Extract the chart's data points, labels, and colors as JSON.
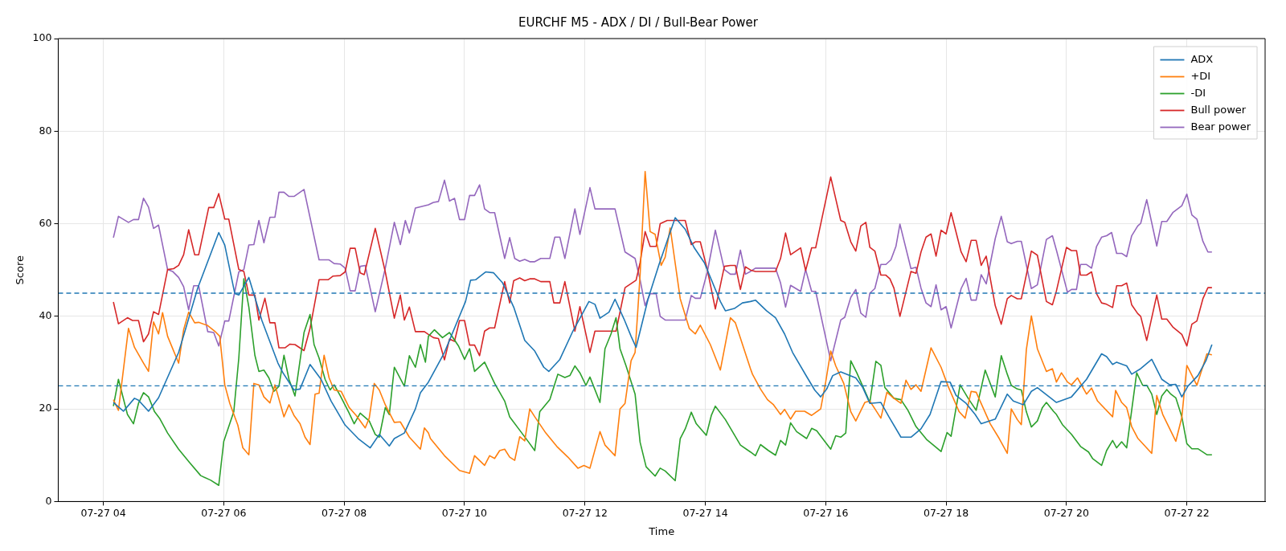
{
  "chart_data": {
    "type": "line",
    "title": "EURCHF M5 - ADX / DI / Bull-Bear Power",
    "xlabel": "Time",
    "ylabel": "Score",
    "xlim": [
      "--07-27T03:15",
      "--07-27T23:18"
    ],
    "xticks": [
      {
        "value": "--07-27T04:00",
        "label": "07-27 04"
      },
      {
        "value": "--07-27T06:00",
        "label": "07-27 06"
      },
      {
        "value": "--07-27T08:00",
        "label": "07-27 08"
      },
      {
        "value": "--07-27T10:00",
        "label": "07-27 10"
      },
      {
        "value": "--07-27T12:00",
        "label": "07-27 12"
      },
      {
        "value": "--07-27T14:00",
        "label": "07-27 14"
      },
      {
        "value": "--07-27T16:00",
        "label": "07-27 16"
      },
      {
        "value": "--07-27T18:00",
        "label": "07-27 18"
      },
      {
        "value": "--07-27T20:00",
        "label": "07-27 20"
      },
      {
        "value": "--07-27T22:00",
        "label": "07-27 22"
      }
    ],
    "ylim": [
      0,
      100
    ],
    "yticks": [
      0,
      20,
      40,
      60,
      80,
      100
    ],
    "grid": true,
    "legend": "top right",
    "ref_lines": [
      {
        "axis": "y",
        "value": 45,
        "color": "#1f77b4",
        "line_style": "dashed"
      },
      {
        "axis": "y",
        "value": 25,
        "color": "#1f77b4",
        "line_style": "dashed"
      }
    ],
    "series": [
      {
        "name": "ADX",
        "color": "#1f77b4",
        "x": [
          "--07-27T04:10",
          "--07-27T04:20",
          "--07-27T04:31",
          "--07-27T04:35",
          "--07-27T04:45",
          "--07-27T04:55",
          "--07-27T05:15",
          "--07-27T05:34",
          "--07-27T05:55",
          "--07-27T06:01",
          "--07-27T06:11",
          "--07-27T06:15",
          "--07-27T06:25",
          "--07-27T06:38",
          "--07-27T06:54",
          "--07-27T06:59",
          "--07-27T07:10",
          "--07-27T07:16",
          "--07-27T07:26",
          "--07-27T07:37",
          "--07-27T07:47",
          "--07-27T08:01",
          "--07-27T08:14",
          "--07-27T08:26",
          "--07-27T08:35",
          "--07-27T08:45",
          "--07-27T08:50",
          "--07-27T09:00",
          "--07-27T09:11",
          "--07-27T09:16",
          "--07-27T09:24",
          "--07-27T09:40",
          "--07-27T10:01",
          "--07-27T10:06",
          "--07-27T10:11",
          "--07-27T10:21",
          "--07-27T10:29",
          "--07-27T10:38",
          "--07-27T10:49",
          "--07-27T11:00",
          "--07-27T11:10",
          "--07-27T11:19",
          "--07-27T11:24",
          "--07-27T11:35",
          "--07-27T11:48",
          "--07-27T12:04",
          "--07-27T12:10",
          "--07-27T12:15",
          "--07-27T12:24",
          "--07-27T12:30",
          "--07-27T12:39",
          "--07-27T12:46",
          "--07-27T12:51",
          "--07-27T13:03",
          "--07-27T13:14",
          "--07-27T13:30",
          "--07-27T13:40",
          "--07-27T13:49",
          "--07-27T13:59",
          "--07-27T14:15",
          "--07-27T14:20",
          "--07-27T14:29",
          "--07-27T14:37",
          "--07-27T14:45",
          "--07-27T14:50",
          "--07-27T15:01",
          "--07-27T15:10",
          "--07-27T15:19",
          "--07-27T15:27",
          "--07-27T15:41",
          "--07-27T15:49",
          "--07-27T15:55",
          "--07-27T16:01",
          "--07-27T16:07",
          "--07-27T16:15",
          "--07-27T16:30",
          "--07-27T16:37",
          "--07-27T16:44",
          "--07-27T16:55",
          "--07-27T17:03",
          "--07-27T17:15",
          "--07-27T17:25",
          "--07-27T17:35",
          "--07-27T17:44",
          "--07-27T17:55",
          "--07-27T18:04",
          "--07-27T18:10",
          "--07-27T18:20",
          "--07-27T18:29",
          "--07-27T18:35",
          "--07-27T18:49",
          "--07-27T19:01",
          "--07-27T19:07",
          "--07-27T19:17",
          "--07-27T19:25",
          "--07-27T19:31",
          "--07-27T19:41",
          "--07-27T19:50",
          "--07-27T20:05",
          "--07-27T20:20",
          "--07-27T20:35",
          "--07-27T20:40",
          "--07-27T20:46",
          "--07-27T20:50",
          "--07-27T20:56",
          "--07-27T21:00",
          "--07-27T21:05",
          "--07-27T21:14",
          "--07-27T21:25",
          "--07-27T21:35",
          "--07-27T21:43",
          "--07-27T21:49",
          "--07-27T21:55",
          "--07-27T22:01",
          "--07-27T22:11",
          "--07-27T22:19",
          "--07-27T22:25"
        ],
        "values": [
          21.4,
          19.5,
          22.3,
          21.9,
          19.5,
          22.4,
          32.2,
          46.1,
          58.1,
          55.4,
          44.9,
          44.6,
          48.4,
          39.1,
          29.9,
          27.8,
          24.1,
          24.3,
          29.6,
          26.4,
          21.7,
          16.5,
          13.6,
          11.6,
          14.5,
          12,
          13.6,
          14.8,
          20,
          23.5,
          25.8,
          32.2,
          43.2,
          47.8,
          47.9,
          49.6,
          49.4,
          47.2,
          42,
          34.8,
          32.5,
          29,
          28.1,
          30.7,
          36.8,
          43.2,
          42.6,
          39.6,
          40.9,
          43.7,
          39.4,
          35.7,
          33.3,
          43.8,
          51.3,
          61.3,
          58.8,
          54.8,
          51.6,
          43.2,
          41.2,
          41.7,
          42.9,
          43.2,
          43.5,
          41.2,
          39.7,
          36.2,
          32.2,
          27,
          24.1,
          22.6,
          24.3,
          27.2,
          28,
          26.7,
          24.6,
          21.2,
          21.4,
          18.3,
          13.9,
          13.9,
          15.7,
          18.8,
          25.9,
          25.8,
          22.9,
          21.2,
          18.8,
          16.8,
          17.8,
          23.2,
          21.7,
          20.9,
          23.8,
          24.6,
          22.9,
          21.4,
          22.6,
          26.4,
          31.9,
          31.3,
          29.6,
          30.1,
          29.6,
          29.3,
          27.5,
          28.7,
          30.7,
          26.4,
          25.2,
          25.3,
          22.6,
          24.9,
          27.2,
          30.4,
          33.9
        ]
      },
      {
        "name": "+DI",
        "color": "#ff7f0e",
        "x": [
          "--07-27T04:10",
          "--07-27T04:15",
          "--07-27T04:25",
          "--07-27T04:31",
          "--07-27T04:40",
          "--07-27T04:45",
          "--07-27T04:50",
          "--07-27T04:55",
          "--07-27T04:59",
          "--07-27T05:04",
          "--07-27T05:15",
          "--07-27T05:20",
          "--07-27T05:25",
          "--07-27T05:31",
          "--07-27T05:35",
          "--07-27T05:44",
          "--07-27T05:51",
          "--07-27T05:56",
          "--07-27T06:01",
          "--07-27T06:06",
          "--07-27T06:14",
          "--07-27T06:19",
          "--07-27T06:25",
          "--07-27T06:30",
          "--07-27T06:35",
          "--07-27T06:40",
          "--07-27T06:46",
          "--07-27T06:51",
          "--07-27T07:00",
          "--07-27T07:05",
          "--07-27T07:10",
          "--07-27T07:16",
          "--07-27T07:21",
          "--07-27T07:26",
          "--07-27T07:31",
          "--07-27T07:35",
          "--07-27T07:40",
          "--07-27T07:45",
          "--07-27T07:50",
          "--07-27T07:57",
          "--07-27T08:05",
          "--07-27T08:12",
          "--07-27T08:21",
          "--07-27T08:25",
          "--07-27T08:30",
          "--07-27T08:35",
          "--07-27T08:41",
          "--07-27T08:50",
          "--07-27T08:56",
          "--07-27T09:05",
          "--07-27T09:16",
          "--07-27T09:20",
          "--07-27T09:24",
          "--07-27T09:26",
          "--07-27T09:40",
          "--07-27T09:55",
          "--07-27T10:05",
          "--07-27T10:10",
          "--07-27T10:20",
          "--07-27T10:25",
          "--07-27T10:30",
          "--07-27T10:35",
          "--07-27T10:40",
          "--07-27T10:45",
          "--07-27T10:50",
          "--07-27T10:55",
          "--07-27T11:00",
          "--07-27T11:05",
          "--07-27T11:10",
          "--07-27T11:21",
          "--07-27T11:32",
          "--07-27T11:43",
          "--07-27T11:53",
          "--07-27T11:59",
          "--07-27T12:05",
          "--07-27T12:15",
          "--07-27T12:20",
          "--07-27T12:30",
          "--07-27T12:35",
          "--07-27T12:40",
          "--07-27T12:46",
          "--07-27T12:50",
          "--07-27T12:55",
          "--07-27T13:00",
          "--07-27T13:05",
          "--07-27T13:10",
          "--07-27T13:16",
          "--07-27T13:20",
          "--07-27T13:25",
          "--07-27T13:35",
          "--07-27T13:44",
          "--07-27T13:50",
          "--07-27T13:55",
          "--07-27T14:05",
          "--07-27T14:15",
          "--07-27T14:25",
          "--07-27T14:30",
          "--07-27T14:45",
          "--07-27T14:47",
          "--07-27T14:55",
          "--07-27T15:02",
          "--07-27T15:08",
          "--07-27T15:15",
          "--07-27T15:19",
          "--07-27T15:25",
          "--07-27T15:30",
          "--07-27T15:39",
          "--07-27T15:46",
          "--07-27T15:55",
          "--07-27T16:00",
          "--07-27T16:05",
          "--07-27T16:10",
          "--07-27T16:18",
          "--07-27T16:25",
          "--07-27T16:30",
          "--07-27T16:39",
          "--07-27T16:44",
          "--07-27T16:50",
          "--07-27T16:55",
          "--07-27T17:01",
          "--07-27T17:08",
          "--07-27T17:15",
          "--07-27T17:20",
          "--07-27T17:25",
          "--07-27T17:30",
          "--07-27T17:35",
          "--07-27T17:45",
          "--07-27T17:55",
          "--07-27T18:02",
          "--07-27T18:13",
          "--07-27T18:19",
          "--07-27T18:25",
          "--07-27T18:30",
          "--07-27T18:44",
          "--07-27T18:53",
          "--07-27T19:01",
          "--07-27T19:05",
          "--07-27T19:11",
          "--07-27T19:15",
          "--07-27T19:20",
          "--07-27T19:25",
          "--07-27T19:31",
          "--07-27T19:40",
          "--07-27T19:46",
          "--07-27T19:50",
          "--07-27T19:55",
          "--07-27T20:01",
          "--07-27T20:05",
          "--07-27T20:11",
          "--07-27T20:20",
          "--07-27T20:25",
          "--07-27T20:31",
          "--07-27T20:46",
          "--07-27T20:49",
          "--07-27T20:55",
          "--07-27T21:00",
          "--07-27T21:05",
          "--07-27T21:11",
          "--07-27T21:25",
          "--07-27T21:30",
          "--07-27T21:36",
          "--07-27T21:49",
          "--07-27T21:55",
          "--07-27T22:00",
          "--07-27T22:10",
          "--07-27T22:20",
          "--07-27T22:25"
        ],
        "values": [
          22,
          19.7,
          37.4,
          33.3,
          29.9,
          28.1,
          38.8,
          36.2,
          40.8,
          35.7,
          29.9,
          37.1,
          40.9,
          38.6,
          38.7,
          38,
          36.8,
          35.7,
          25.2,
          21.2,
          16.5,
          11.6,
          10.1,
          25.5,
          25.2,
          22.6,
          21.3,
          25.2,
          18.3,
          20.9,
          18.6,
          16.8,
          13.9,
          12.3,
          23.2,
          23.4,
          31.6,
          26.7,
          24.1,
          23.8,
          20.3,
          18.6,
          15.9,
          18,
          25.5,
          24.1,
          20.9,
          17.1,
          17.2,
          13.9,
          11.3,
          15.9,
          14.8,
          13.6,
          9.9,
          6.7,
          6.1,
          9.9,
          7.8,
          9.9,
          9.3,
          11,
          11.3,
          9.6,
          8.9,
          14,
          13.1,
          20,
          18.3,
          14.8,
          11.9,
          9.6,
          7.2,
          7.8,
          7.2,
          15.1,
          12.2,
          9.9,
          20,
          21.2,
          30.4,
          32.2,
          49,
          71.3,
          58.3,
          57.7,
          51,
          52.8,
          59.1,
          43.8,
          37.4,
          36.2,
          38.1,
          33.9,
          28.4,
          39.7,
          38.6,
          28.7,
          27.5,
          24.3,
          22,
          20.9,
          18.8,
          19.9,
          17.8,
          19.5,
          19.5,
          18.6,
          20,
          25.8,
          32.5,
          29.3,
          25.5,
          19.4,
          17.4,
          21.4,
          21.7,
          19.7,
          18,
          23.6,
          22.3,
          21.2,
          26.2,
          24.2,
          25.2,
          23.8,
          33.2,
          29,
          24.9,
          19.4,
          18,
          23.8,
          23.6,
          16.8,
          13.6,
          10.4,
          20,
          17.7,
          16.6,
          32.8,
          40.1,
          33,
          28.1,
          28.7,
          25.8,
          27.8,
          25.8,
          25.2,
          26.7,
          23.2,
          24.5,
          21.7,
          18.3,
          24,
          21.4,
          20.3,
          16.2,
          13.7,
          10.4,
          22.9,
          18.8,
          13,
          18.2,
          29.4,
          25.1,
          31.9,
          31.7
        ]
      },
      {
        "name": "-DI",
        "color": "#2ca02c",
        "x": [
          "--07-27T04:10",
          "--07-27T04:15",
          "--07-27T04:24",
          "--07-27T04:30",
          "--07-27T04:35",
          "--07-27T04:40",
          "--07-27T04:45",
          "--07-27T04:51",
          "--07-27T04:56",
          "--07-27T05:04",
          "--07-27T05:15",
          "--07-27T05:26",
          "--07-27T05:37",
          "--07-27T05:47",
          "--07-27T05:55",
          "--07-27T06:00",
          "--07-27T06:10",
          "--07-27T06:15",
          "--07-27T06:20",
          "--07-27T06:25",
          "--07-27T06:31",
          "--07-27T06:35",
          "--07-27T06:40",
          "--07-27T06:45",
          "--07-27T06:50",
          "--07-27T06:55",
          "--07-27T07:00",
          "--07-27T07:05",
          "--07-27T07:11",
          "--07-27T07:20",
          "--07-27T07:26",
          "--07-27T07:30",
          "--07-27T07:35",
          "--07-27T07:41",
          "--07-27T07:46",
          "--07-27T07:50",
          "--07-27T07:56",
          "--07-27T08:05",
          "--07-27T08:10",
          "--07-27T08:16",
          "--07-27T08:25",
          "--07-27T08:31",
          "--07-27T08:35",
          "--07-27T08:41",
          "--07-27T08:45",
          "--07-27T08:50",
          "--07-27T09:00",
          "--07-27T09:05",
          "--07-27T09:11",
          "--07-27T09:16",
          "--07-27T09:21",
          "--07-27T09:24",
          "--07-27T09:30",
          "--07-27T09:38",
          "--07-27T09:45",
          "--07-27T09:54",
          "--07-27T10:00",
          "--07-27T10:05",
          "--07-27T10:10",
          "--07-27T10:20",
          "--07-27T10:30",
          "--07-27T10:40",
          "--07-27T10:45",
          "--07-27T10:55",
          "--07-27T11:04",
          "--07-27T11:10",
          "--07-27T11:15",
          "--07-27T11:25",
          "--07-27T11:33",
          "--07-27T11:40",
          "--07-27T11:45",
          "--07-27T11:50",
          "--07-27T11:55",
          "--07-27T12:01",
          "--07-27T12:05",
          "--07-27T12:15",
          "--07-27T12:20",
          "--07-27T12:26",
          "--07-27T12:31",
          "--07-27T12:35",
          "--07-27T12:41",
          "--07-27T12:50",
          "--07-27T12:55",
          "--07-27T13:01",
          "--07-27T13:10",
          "--07-27T13:15",
          "--07-27T13:20",
          "--07-27T13:30",
          "--07-27T13:35",
          "--07-27T13:40",
          "--07-27T13:46",
          "--07-27T13:51",
          "--07-27T14:01",
          "--07-27T14:06",
          "--07-27T14:10",
          "--07-27T14:20",
          "--07-27T14:35",
          "--07-27T14:45",
          "--07-27T14:50",
          "--07-27T14:55",
          "--07-27T15:03",
          "--07-27T15:10",
          "--07-27T15:15",
          "--07-27T15:20",
          "--07-27T15:25",
          "--07-27T15:31",
          "--07-27T15:41",
          "--07-27T15:46",
          "--07-27T15:51",
          "--07-27T16:05",
          "--07-27T16:10",
          "--07-27T16:15",
          "--07-27T16:20",
          "--07-27T16:25",
          "--07-27T16:31",
          "--07-27T16:41",
          "--07-27T16:44",
          "--07-27T16:50",
          "--07-27T16:55",
          "--07-27T16:59",
          "--07-27T17:08",
          "--07-27T17:15",
          "--07-27T17:22",
          "--07-27T17:30",
          "--07-27T17:41",
          "--07-27T17:49",
          "--07-27T17:55",
          "--07-27T18:01",
          "--07-27T18:05",
          "--07-27T18:14",
          "--07-27T18:22",
          "--07-27T18:30",
          "--07-27T18:39",
          "--07-27T18:49",
          "--07-27T18:55",
          "--07-27T19:01",
          "--07-27T19:05",
          "--07-27T19:11",
          "--07-27T19:15",
          "--07-27T19:20",
          "--07-27T19:25",
          "--07-27T19:31",
          "--07-27T19:36",
          "--07-27T19:40",
          "--07-27T19:47",
          "--07-27T19:50",
          "--07-27T19:56",
          "--07-27T20:05",
          "--07-27T20:14",
          "--07-27T20:22",
          "--07-27T20:26",
          "--07-27T20:35",
          "--07-27T20:40",
          "--07-27T20:46",
          "--07-27T20:50",
          "--07-27T20:55",
          "--07-27T21:00",
          "--07-27T21:10",
          "--07-27T21:16",
          "--07-27T21:20",
          "--07-27T21:25",
          "--07-27T21:30",
          "--07-27T21:35",
          "--07-27T21:40",
          "--07-27T21:44",
          "--07-27T21:49",
          "--07-27T21:55",
          "--07-27T22:00",
          "--07-27T22:05",
          "--07-27T22:11",
          "--07-27T22:20",
          "--07-27T22:25"
        ],
        "values": [
          20.6,
          26.4,
          18.8,
          16.8,
          21.2,
          23.5,
          22.6,
          19.4,
          18,
          14.8,
          11.3,
          8.4,
          5.6,
          4.6,
          3.5,
          13,
          19.4,
          31,
          48.1,
          42,
          31.6,
          28.1,
          28.4,
          26.7,
          23.8,
          24.9,
          31.6,
          26.4,
          22.8,
          36.5,
          40.4,
          33.9,
          31,
          26.4,
          24.1,
          25.2,
          22.9,
          19.1,
          16.8,
          19.1,
          17.4,
          14.5,
          13.9,
          20.3,
          18.8,
          29,
          24.9,
          31.5,
          29,
          33.9,
          30.1,
          35.7,
          37.1,
          35.4,
          36.5,
          33.6,
          30.7,
          33,
          28.1,
          30.1,
          25.5,
          21.7,
          18.3,
          15.4,
          12.8,
          11,
          19.4,
          22,
          27.5,
          26.8,
          27.2,
          29.3,
          27.8,
          25.1,
          26.9,
          21.4,
          33,
          36.2,
          39.7,
          33,
          29.3,
          23.2,
          12.8,
          7.5,
          5.5,
          7.2,
          6.6,
          4.5,
          13.6,
          15.7,
          19.3,
          16.8,
          14.3,
          18.6,
          20.6,
          17.7,
          12.2,
          10.7,
          9.9,
          12.3,
          11,
          10,
          13.2,
          12.2,
          17,
          15.1,
          13.6,
          15.8,
          15.3,
          11.3,
          14.2,
          13.9,
          14.8,
          30.4,
          27.8,
          22.9,
          21.4,
          30.3,
          29.4,
          24.6,
          22.3,
          22,
          19.7,
          16.2,
          13.3,
          11.9,
          10.8,
          14.9,
          14.1,
          25.2,
          22.3,
          19.7,
          28.4,
          22.6,
          31.5,
          27.5,
          25.1,
          24.3,
          24.1,
          19.4,
          16.1,
          17.4,
          20.3,
          21.4,
          19.5,
          18.8,
          16.6,
          14.5,
          11.9,
          10.7,
          9.3,
          7.8,
          11,
          13.2,
          11.6,
          12.9,
          11.6,
          27.8,
          25.1,
          25.1,
          23.2,
          18.8,
          22.8,
          24.2,
          23.2,
          22.4,
          18.3,
          12.5,
          11.4,
          11.4,
          10.1,
          10.1
        ]
      },
      {
        "name": "Bull power",
        "color": "#d62728",
        "x": [
          "--07-27T04:10",
          "--07-27T04:15",
          "--07-27T04:24",
          "--07-27T04:29",
          "--07-27T04:35",
          "--07-27T04:40",
          "--07-27T04:45",
          "--07-27T04:50",
          "--07-27T04:55",
          "--07-27T05:04",
          "--07-27T05:10",
          "--07-27T05:15",
          "--07-27T05:20",
          "--07-27T05:25",
          "--07-27T05:31",
          "--07-27T05:35",
          "--07-27T05:45",
          "--07-27T05:50",
          "--07-27T05:55",
          "--07-27T06:01",
          "--07-27T06:05",
          "--07-27T06:15",
          "--07-27T06:20",
          "--07-27T06:25",
          "--07-27T06:31",
          "--07-27T06:35",
          "--07-27T06:41",
          "--07-27T06:46",
          "--07-27T06:51",
          "--07-27T06:55",
          "--07-27T07:01",
          "--07-27T07:06",
          "--07-27T07:11",
          "--07-27T07:20",
          "--07-27T07:26",
          "--07-27T07:35",
          "--07-27T07:44",
          "--07-27T07:49",
          "--07-27T07:56",
          "--07-27T08:01",
          "--07-27T08:06",
          "--07-27T08:11",
          "--07-27T08:16",
          "--07-27T08:20",
          "--07-27T08:31",
          "--07-27T08:41",
          "--07-27T08:50",
          "--07-27T08:56",
          "--07-27T09:00",
          "--07-27T09:05",
          "--07-27T09:11",
          "--07-27T09:20",
          "--07-27T09:24",
          "--07-27T09:29",
          "--07-27T09:34",
          "--07-27T09:40",
          "--07-27T09:45",
          "--07-27T09:50",
          "--07-27T09:55",
          "--07-27T10:00",
          "--07-27T10:05",
          "--07-27T10:10",
          "--07-27T10:15",
          "--07-27T10:20",
          "--07-27T10:25",
          "--07-27T10:30",
          "--07-27T10:40",
          "--07-27T10:45",
          "--07-27T10:49",
          "--07-27T10:55",
          "--07-27T11:00",
          "--07-27T11:05",
          "--07-27T11:10",
          "--07-27T11:16",
          "--07-27T11:25",
          "--07-27T11:29",
          "--07-27T11:35",
          "--07-27T11:40",
          "--07-27T11:50",
          "--07-27T11:55",
          "--07-27T12:05",
          "--07-27T12:10",
          "--07-27T12:31",
          "--07-27T12:40",
          "--07-27T12:51",
          "--07-27T12:55",
          "--07-27T13:00",
          "--07-27T13:05",
          "--07-27T13:11",
          "--07-27T13:15",
          "--07-27T13:22",
          "--07-27T13:40",
          "--07-27T13:46",
          "--07-27T13:50",
          "--07-27T13:55",
          "--07-27T14:02",
          "--07-27T14:10",
          "--07-27T14:19",
          "--07-27T14:25",
          "--07-27T14:30",
          "--07-27T14:35",
          "--07-27T14:40",
          "--07-27T14:45",
          "--07-27T14:50",
          "--07-27T15:10",
          "--07-27T15:15",
          "--07-27T15:20",
          "--07-27T15:25",
          "--07-27T15:35",
          "--07-27T15:40",
          "--07-27T15:46",
          "--07-27T15:50",
          "--07-27T16:05",
          "--07-27T16:15",
          "--07-27T16:19",
          "--07-27T16:25",
          "--07-27T16:30",
          "--07-27T16:35",
          "--07-27T16:40",
          "--07-27T16:44",
          "--07-27T16:49",
          "--07-27T16:55",
          "--07-27T17:00",
          "--07-27T17:04",
          "--07-27T17:08",
          "--07-27T17:14",
          "--07-27T17:25",
          "--07-27T17:30",
          "--07-27T17:35",
          "--07-27T17:40",
          "--07-27T17:45",
          "--07-27T17:50",
          "--07-27T17:55",
          "--07-27T18:00",
          "--07-27T18:05",
          "--07-27T18:15",
          "--07-27T18:20",
          "--07-27T18:25",
          "--07-27T18:30",
          "--07-27T18:35",
          "--07-27T18:40",
          "--07-27T18:49",
          "--07-27T18:55",
          "--07-27T19:01",
          "--07-27T19:05",
          "--07-27T19:11",
          "--07-27T19:15",
          "--07-27T19:25",
          "--07-27T19:31",
          "--07-27T19:40",
          "--07-27T19:46",
          "--07-27T19:50",
          "--07-27T20:00",
          "--07-27T20:05",
          "--07-27T20:10",
          "--07-27T20:14",
          "--07-27T20:20",
          "--07-27T20:25",
          "--07-27T20:30",
          "--07-27T20:35",
          "--07-27T20:40",
          "--07-27T20:46",
          "--07-27T20:50",
          "--07-27T20:55",
          "--07-27T21:00",
          "--07-27T21:05",
          "--07-27T21:11",
          "--07-27T21:14",
          "--07-27T21:20",
          "--07-27T21:30",
          "--07-27T21:35",
          "--07-27T21:40",
          "--07-27T21:46",
          "--07-27T21:55",
          "--07-27T22:00",
          "--07-27T22:05",
          "--07-27T22:10",
          "--07-27T22:16",
          "--07-27T22:21",
          "--07-27T22:25"
        ],
        "values": [
          43.1,
          38.4,
          39.7,
          39.1,
          39.1,
          34.5,
          36.2,
          41,
          40.4,
          50.1,
          50.3,
          51,
          53.3,
          58.7,
          53.3,
          53.3,
          63.5,
          63.5,
          66.5,
          61,
          61,
          50.1,
          49.7,
          44.6,
          44.6,
          39.2,
          43.9,
          38.6,
          38.6,
          33.2,
          33.2,
          34,
          33.9,
          32.6,
          37.4,
          47.9,
          47.9,
          48.7,
          48.8,
          49.6,
          54.7,
          54.7,
          49.4,
          49,
          59,
          49.6,
          39.6,
          44.6,
          39.2,
          42,
          36.7,
          36.7,
          36.1,
          35.4,
          35.2,
          30.6,
          35.1,
          34.6,
          39.1,
          39.1,
          33.8,
          33.8,
          31.5,
          36.8,
          37.5,
          37.5,
          47.5,
          42.9,
          47.7,
          48.3,
          47.7,
          48.1,
          48.1,
          47.5,
          47.5,
          42.9,
          42.9,
          47.5,
          36.8,
          42.1,
          32.2,
          36.8,
          36.8,
          46.2,
          47.8,
          51.6,
          58.3,
          55.1,
          55.1,
          60,
          60.7,
          60.7,
          55.5,
          56.1,
          56.1,
          50.1,
          41.6,
          50.8,
          51,
          51,
          45.8,
          50.7,
          50,
          49.7,
          49.7,
          52.5,
          58,
          53.3,
          54.8,
          49.9,
          54.8,
          54.8,
          70.1,
          60.7,
          60.3,
          56.1,
          54.1,
          59.5,
          60.3,
          54.9,
          54.1,
          48.9,
          48.9,
          48.1,
          46.1,
          40,
          49.7,
          49.3,
          53.9,
          57.1,
          57.8,
          53,
          58.6,
          57.8,
          62.4,
          53.9,
          51.8,
          56.4,
          56.4,
          51,
          53,
          42.3,
          38.3,
          43.8,
          44.5,
          43.8,
          43.8,
          54.1,
          53.2,
          43.2,
          42.5,
          45.5,
          54.9,
          54.2,
          54.2,
          48.9,
          48.9,
          49.6,
          44.9,
          42.9,
          42.6,
          41.9,
          46.6,
          46.6,
          47.2,
          42.5,
          40.6,
          40,
          34.8,
          44.6,
          39.4,
          39.4,
          37.7,
          36.1,
          33.6,
          38.3,
          39,
          43.8,
          46.2,
          46.2
        ]
      },
      {
        "name": "Bear power",
        "color": "#9467bd",
        "x": [
          "--07-27T04:10",
          "--07-27T04:15",
          "--07-27T04:25",
          "--07-27T04:30",
          "--07-27T04:35",
          "--07-27T04:40",
          "--07-27T04:45",
          "--07-27T04:50",
          "--07-27T04:55",
          "--07-27T05:04",
          "--07-27T05:09",
          "--07-27T05:15",
          "--07-27T05:20",
          "--07-27T05:25",
          "--07-27T05:30",
          "--07-27T05:35",
          "--07-27T05:44",
          "--07-27T05:50",
          "--07-27T05:55",
          "--07-27T06:01",
          "--07-27T06:05",
          "--07-27T06:15",
          "--07-27T06:20",
          "--07-27T06:25",
          "--07-27T06:30",
          "--07-27T06:35",
          "--07-27T06:40",
          "--07-27T06:46",
          "--07-27T06:51",
          "--07-27T06:55",
          "--07-27T07:00",
          "--07-27T07:05",
          "--07-27T07:10",
          "--07-27T07:20",
          "--07-27T07:35",
          "--07-27T07:45",
          "--07-27T07:50",
          "--07-27T07:56",
          "--07-27T08:01",
          "--07-27T08:06",
          "--07-27T08:11",
          "--07-27T08:16",
          "--07-27T08:21",
          "--07-27T08:31",
          "--07-27T08:41",
          "--07-27T08:50",
          "--07-27T08:56",
          "--07-27T09:01",
          "--07-27T09:05",
          "--07-27T09:11",
          "--07-27T09:24",
          "--07-27T09:29",
          "--07-27T09:34",
          "--07-27T09:40",
          "--07-27T09:45",
          "--07-27T09:50",
          "--07-27T09:55",
          "--07-27T10:00",
          "--07-27T10:05",
          "--07-27T10:10",
          "--07-27T10:15",
          "--07-27T10:20",
          "--07-27T10:25",
          "--07-27T10:30",
          "--07-27T10:40",
          "--07-27T10:45",
          "--07-27T10:50",
          "--07-27T10:55",
          "--07-27T11:00",
          "--07-27T11:05",
          "--07-27T11:10",
          "--07-27T11:16",
          "--07-27T11:25",
          "--07-27T11:30",
          "--07-27T11:35",
          "--07-27T11:40",
          "--07-27T11:50",
          "--07-27T11:55",
          "--07-27T12:05",
          "--07-27T12:10",
          "--07-27T12:30",
          "--07-27T12:40",
          "--07-27T12:50",
          "--07-27T12:55",
          "--07-27T13:00",
          "--07-27T13:05",
          "--07-27T13:11",
          "--07-27T13:15",
          "--07-27T13:20",
          "--07-27T13:40",
          "--07-27T13:46",
          "--07-27T13:50",
          "--07-27T13:55",
          "--07-27T14:02",
          "--07-27T14:10",
          "--07-27T14:19",
          "--07-27T14:25",
          "--07-27T14:30",
          "--07-27T14:35",
          "--07-27T14:40",
          "--07-27T14:45",
          "--07-27T14:50",
          "--07-27T15:10",
          "--07-27T15:15",
          "--07-27T15:20",
          "--07-27T15:25",
          "--07-27T15:35",
          "--07-27T15:40",
          "--07-27T15:46",
          "--07-27T15:50",
          "--07-27T16:05",
          "--07-27T16:15",
          "--07-27T16:19",
          "--07-27T16:25",
          "--07-27T16:30",
          "--07-27T16:35",
          "--07-27T16:40",
          "--07-27T16:44",
          "--07-27T16:49",
          "--07-27T16:55",
          "--07-27T17:00",
          "--07-27T17:05",
          "--07-27T17:10",
          "--07-27T17:14",
          "--07-27T17:25",
          "--07-27T17:30",
          "--07-27T17:35",
          "--07-27T17:40",
          "--07-27T17:45",
          "--07-27T17:50",
          "--07-27T17:55",
          "--07-27T18:00",
          "--07-27T18:05",
          "--07-27T18:15",
          "--07-27T18:20",
          "--07-27T18:25",
          "--07-27T18:30",
          "--07-27T18:35",
          "--07-27T18:40",
          "--07-27T18:49",
          "--07-27T18:55",
          "--07-27T19:01",
          "--07-27T19:05",
          "--07-27T19:11",
          "--07-27T19:15",
          "--07-27T19:25",
          "--07-27T19:31",
          "--07-27T19:40",
          "--07-27T19:46",
          "--07-27T19:50",
          "--07-27T20:01",
          "--07-27T20:05",
          "--07-27T20:10",
          "--07-27T20:14",
          "--07-27T20:20",
          "--07-27T20:25",
          "--07-27T20:30",
          "--07-27T20:35",
          "--07-27T20:40",
          "--07-27T20:45",
          "--07-27T20:50",
          "--07-27T20:55",
          "--07-27T21:00",
          "--07-27T21:05",
          "--07-27T21:11",
          "--07-27T21:14",
          "--07-27T21:20",
          "--07-27T21:30",
          "--07-27T21:35",
          "--07-27T21:40",
          "--07-27T21:46",
          "--07-27T21:55",
          "--07-27T22:00",
          "--07-27T22:05",
          "--07-27T22:10",
          "--07-27T22:16",
          "--07-27T22:21",
          "--07-27T22:25"
        ],
        "values": [
          57,
          61.6,
          60.3,
          60.9,
          60.9,
          65.5,
          63.6,
          59,
          59.7,
          50.1,
          49.7,
          48.4,
          46.4,
          41.4,
          46.6,
          46.6,
          36.7,
          36.5,
          33.6,
          39,
          39,
          49.6,
          50.1,
          55.4,
          55.5,
          60.7,
          55.9,
          61.4,
          61.4,
          66.8,
          66.8,
          65.9,
          65.9,
          67.4,
          52.2,
          52.2,
          51.4,
          51.3,
          50.4,
          45.5,
          45.5,
          50.8,
          51,
          41,
          50.4,
          60.3,
          55.5,
          60.7,
          58,
          63.4,
          64.1,
          64.6,
          64.8,
          69.4,
          64.9,
          65.5,
          60.9,
          60.9,
          66.1,
          66.1,
          68.4,
          63.2,
          62.4,
          62.4,
          52.5,
          57,
          52.5,
          51.9,
          52.3,
          51.8,
          51.8,
          52.5,
          52.5,
          57.1,
          57.1,
          52.5,
          63.2,
          57.7,
          67.8,
          63.2,
          63.2,
          53.9,
          52.5,
          47.9,
          42.3,
          44.9,
          44.9,
          40,
          39.2,
          39.2,
          44.5,
          43.9,
          43.9,
          49.6,
          58.6,
          50.1,
          49.1,
          49.1,
          54.3,
          49.1,
          49.7,
          50.4,
          50.4,
          47.2,
          42,
          46.7,
          45.4,
          50.1,
          45.4,
          45.4,
          30.4,
          39.2,
          39.8,
          44.1,
          45.8,
          40.7,
          39.8,
          45,
          46,
          51.2,
          51.2,
          52.2,
          55.1,
          59.9,
          50.3,
          50.6,
          46.1,
          42.9,
          42.1,
          46.8,
          41.4,
          42.1,
          37.5,
          46,
          48.2,
          43.5,
          43.5,
          49,
          47,
          56.8,
          61.6,
          56.1,
          55.7,
          56.2,
          56.2,
          46,
          46.8,
          56.6,
          57.4,
          54.3,
          45.2,
          45.8,
          45.8,
          51.2,
          51.2,
          50.4,
          55.1,
          57.1,
          57.4,
          58.1,
          53.6,
          53.6,
          52.9,
          57.4,
          59.5,
          60.1,
          65.2,
          55.2,
          60.5,
          60.5,
          62.4,
          63.9,
          66.4,
          61.9,
          61,
          56.2,
          53.9,
          53.9
        ]
      }
    ]
  }
}
